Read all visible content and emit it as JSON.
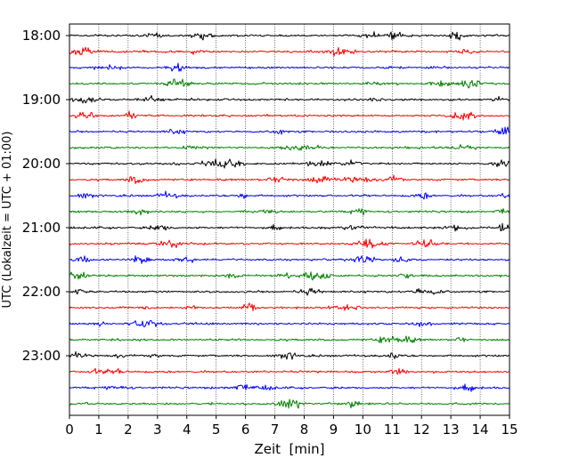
{
  "chart_data": {
    "type": "line",
    "title": "",
    "xlabel": "Zeit  [min]",
    "ylabel": "UTC (Lokalzeit = UTC + 01:00)",
    "xlim": [
      0,
      15
    ],
    "x_ticks": [
      0,
      1,
      2,
      3,
      4,
      5,
      6,
      7,
      8,
      9,
      10,
      11,
      12,
      13,
      14,
      15
    ],
    "y_tick_labels": [
      "18:00",
      "19:00",
      "20:00",
      "21:00",
      "22:00",
      "23:00"
    ],
    "vertical_grid": true,
    "trace_colors": [
      "#000000",
      "#ff0000",
      "#0000ff",
      "#008000"
    ],
    "traces": [
      {
        "start": "18:00",
        "color": "#000000"
      },
      {
        "start": "18:15",
        "color": "#ff0000"
      },
      {
        "start": "18:30",
        "color": "#0000ff"
      },
      {
        "start": "18:45",
        "color": "#008000"
      },
      {
        "start": "19:00",
        "color": "#000000"
      },
      {
        "start": "19:15",
        "color": "#ff0000"
      },
      {
        "start": "19:30",
        "color": "#0000ff"
      },
      {
        "start": "19:45",
        "color": "#008000"
      },
      {
        "start": "20:00",
        "color": "#000000"
      },
      {
        "start": "20:15",
        "color": "#ff0000"
      },
      {
        "start": "20:30",
        "color": "#0000ff"
      },
      {
        "start": "20:45",
        "color": "#008000"
      },
      {
        "start": "21:00",
        "color": "#000000"
      },
      {
        "start": "21:15",
        "color": "#ff0000"
      },
      {
        "start": "21:30",
        "color": "#0000ff"
      },
      {
        "start": "21:45",
        "color": "#008000"
      },
      {
        "start": "22:00",
        "color": "#000000"
      },
      {
        "start": "22:15",
        "color": "#ff0000"
      },
      {
        "start": "22:30",
        "color": "#0000ff"
      },
      {
        "start": "22:45",
        "color": "#008000"
      },
      {
        "start": "23:00",
        "color": "#000000"
      },
      {
        "start": "23:15",
        "color": "#ff0000"
      },
      {
        "start": "23:30",
        "color": "#0000ff"
      },
      {
        "start": "23:45",
        "color": "#008000"
      }
    ]
  }
}
